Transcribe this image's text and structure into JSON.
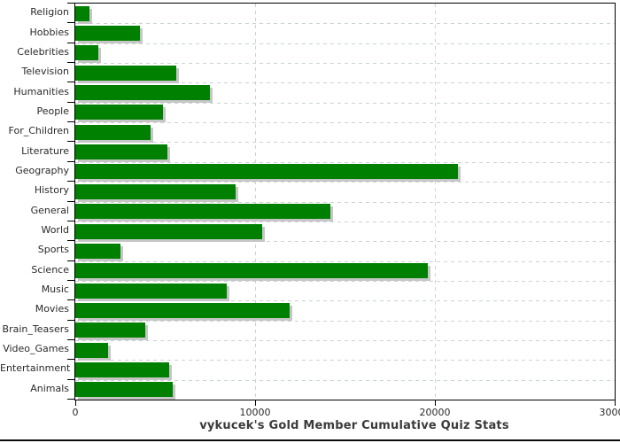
{
  "chart_data": {
    "type": "bar",
    "orientation": "horizontal",
    "title": "vykucek's Gold Member Cumulative Quiz Stats",
    "categories": [
      "Religion",
      "Hobbies",
      "Celebrities",
      "Television",
      "Humanities",
      "People",
      "For_Children",
      "Literature",
      "Geography",
      "History",
      "General",
      "World",
      "Sports",
      "Science",
      "Music",
      "Movies",
      "Brain_Teasers",
      "Video_Games",
      "Entertainment",
      "Animals"
    ],
    "values": [
      800,
      3600,
      1300,
      5600,
      7500,
      4900,
      4200,
      5100,
      21300,
      8900,
      14200,
      10400,
      2500,
      19600,
      8400,
      11900,
      3900,
      1800,
      5200,
      5400
    ],
    "xlabel": "",
    "ylabel": "",
    "xlim": [
      0,
      30000
    ],
    "x_ticks": [
      0,
      10000,
      20000,
      30000
    ],
    "x_tick_labels": [
      "0",
      "10000",
      "20000",
      "30000"
    ],
    "grid": true,
    "legend": "none",
    "bar_color": "#008000",
    "bar_shadow_color": "#c6c6c6",
    "gridline_color": "#ccd2d2",
    "axis_color": "#000000",
    "text_color": "#2a2a2a",
    "title_color": "#3b3b3b"
  }
}
